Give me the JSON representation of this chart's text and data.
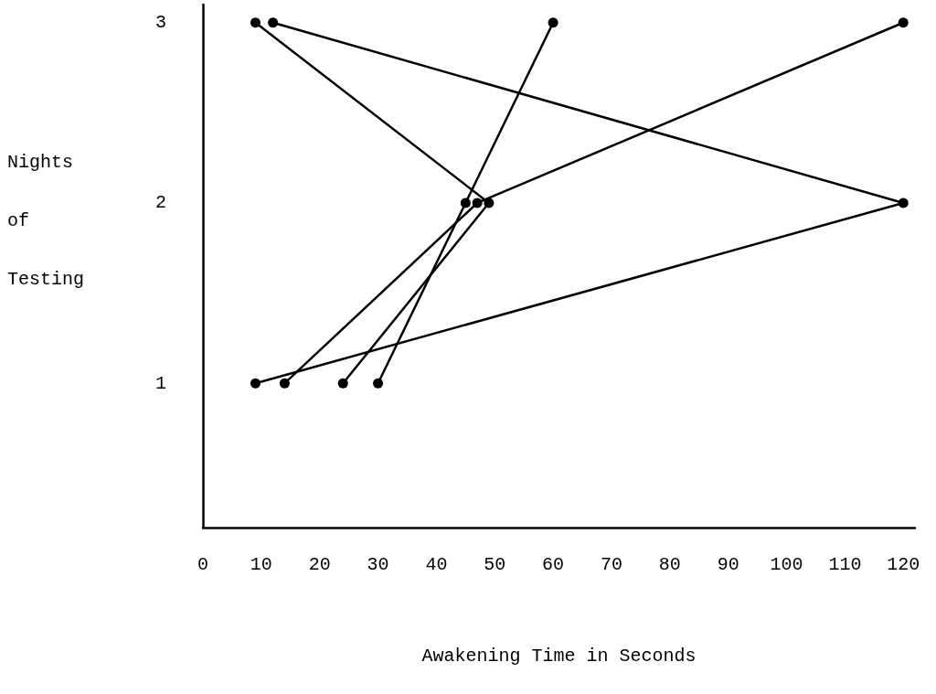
{
  "chart_data": {
    "type": "line",
    "xlabel": "Awakening Time in Seconds",
    "ylabel": "Nights of Testing",
    "xlim": [
      0,
      122
    ],
    "xticks": [
      0,
      10,
      20,
      30,
      40,
      50,
      60,
      70,
      80,
      90,
      100,
      110,
      120
    ],
    "ylim": [
      0.2,
      3.1
    ],
    "yticks": [
      1,
      2,
      3
    ],
    "series": [
      {
        "color": "#000000",
        "x": [
          9,
          120,
          12
        ],
        "values": [
          1,
          2,
          3
        ]
      },
      {
        "color": "#000000",
        "x": [
          14,
          47,
          120
        ],
        "values": [
          1,
          2,
          3
        ]
      },
      {
        "color": "#000000",
        "x": [
          24,
          49,
          9
        ],
        "values": [
          1,
          2,
          3
        ]
      },
      {
        "color": "#000000",
        "x": [
          30,
          45,
          60
        ],
        "values": [
          1,
          2,
          3
        ]
      }
    ],
    "marker": "circle",
    "line_style": "solid",
    "grid": false
  }
}
